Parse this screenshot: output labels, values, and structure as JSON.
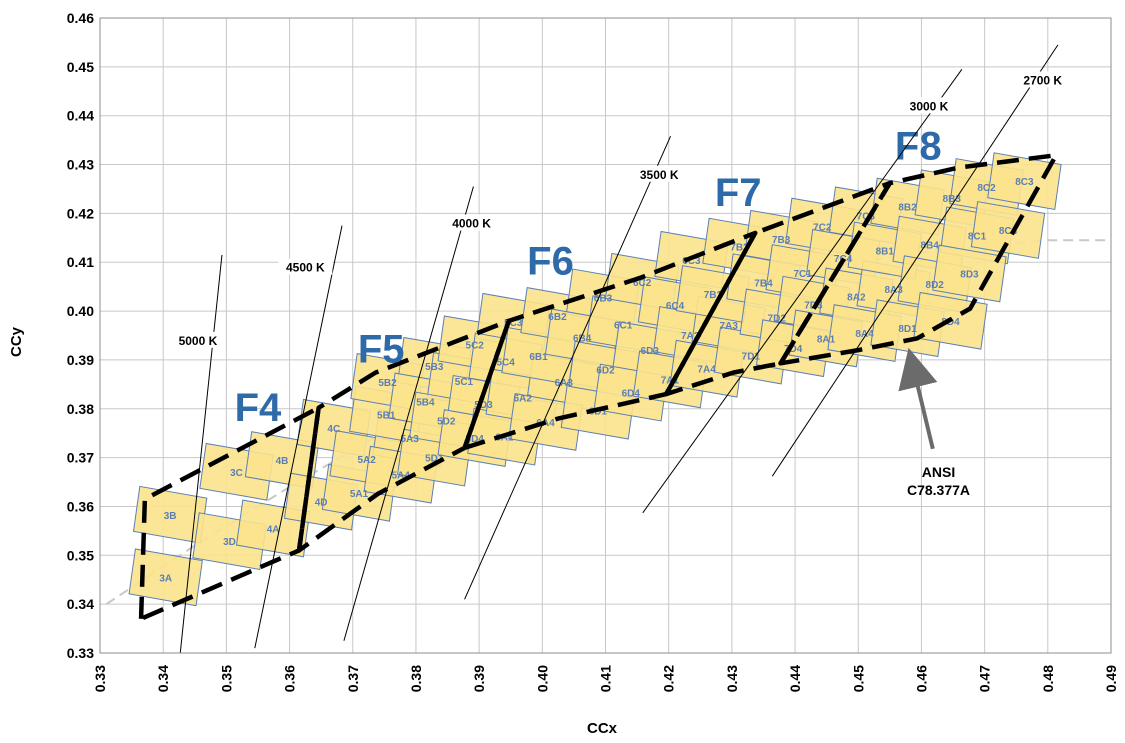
{
  "chart_data": {
    "type": "scatter",
    "title": "",
    "xlabel": "CCx",
    "ylabel": "CCy",
    "xlim": [
      0.33,
      0.49
    ],
    "ylim": [
      0.33,
      0.46
    ],
    "grid": true,
    "x_ticks": [
      "0.33",
      "0.34",
      "0.35",
      "0.36",
      "0.37",
      "0.38",
      "0.39",
      "0.40",
      "0.41",
      "0.42",
      "0.43",
      "0.44",
      "0.45",
      "0.46",
      "0.47",
      "0.48",
      "0.49"
    ],
    "y_ticks": [
      "0.33",
      "0.34",
      "0.35",
      "0.36",
      "0.37",
      "0.38",
      "0.39",
      "0.40",
      "0.41",
      "0.42",
      "0.43",
      "0.44",
      "0.45",
      "0.46"
    ],
    "colors": {
      "bin_fill": "#fbe38c",
      "bin_fill_alt": "#c9dc8a",
      "bin_edge": "#5b7fb5",
      "family_label": "#2e6aa8",
      "dashed_outline": "#000000",
      "planckian": "#c8c8c8",
      "arrow": "#6b6b6b"
    },
    "planckian_locus": {
      "x": [
        0.331,
        0.345,
        0.36,
        0.38,
        0.4,
        0.42,
        0.44,
        0.46,
        0.48,
        0.49
      ],
      "y": [
        0.34,
        0.352,
        0.364,
        0.379,
        0.392,
        0.401,
        0.408,
        0.412,
        0.4145,
        0.4145
      ]
    },
    "cct_lines": [
      {
        "label": "5000 K",
        "x1": 0.3427,
        "y1": 0.33,
        "x2": 0.3493,
        "y2": 0.4115,
        "label_x": 0.3455,
        "label_y": 0.3935
      },
      {
        "label": "4500 K",
        "x1": 0.3545,
        "y1": 0.331,
        "x2": 0.3683,
        "y2": 0.4175,
        "label_x": 0.3625,
        "label_y": 0.4085
      },
      {
        "label": "4000 K",
        "x1": 0.3686,
        "y1": 0.3325,
        "x2": 0.3891,
        "y2": 0.4255,
        "label_x": 0.3888,
        "label_y": 0.4175
      },
      {
        "label": "3500 K",
        "x1": 0.3877,
        "y1": 0.341,
        "x2": 0.4203,
        "y2": 0.4358,
        "label_x": 0.4185,
        "label_y": 0.4275
      },
      {
        "label": "3000 K",
        "x1": 0.4159,
        "y1": 0.3587,
        "x2": 0.4664,
        "y2": 0.4495,
        "label_x": 0.4612,
        "label_y": 0.4415
      },
      {
        "label": "2700 K",
        "x1": 0.4364,
        "y1": 0.3662,
        "x2": 0.4816,
        "y2": 0.4545,
        "label_x": 0.4792,
        "label_y": 0.4468
      }
    ],
    "families": [
      {
        "name": "F4",
        "label_x": 0.355,
        "label_y": 0.3775,
        "polygon": [
          [
            0.3365,
            0.337
          ],
          [
            0.3371,
            0.3615
          ],
          [
            0.3646,
            0.3802
          ],
          [
            0.3615,
            0.351
          ]
        ]
      },
      {
        "name": "F5",
        "label_x": 0.3745,
        "label_y": 0.3895,
        "polygon": [
          [
            0.3615,
            0.351
          ],
          [
            0.3646,
            0.3802
          ],
          [
            0.3736,
            0.3874
          ],
          [
            0.3947,
            0.398
          ],
          [
            0.3877,
            0.372
          ],
          [
            0.374,
            0.3626
          ]
        ]
      },
      {
        "name": "F6",
        "label_x": 0.4013,
        "label_y": 0.4075,
        "polygon": [
          [
            0.3877,
            0.372
          ],
          [
            0.3947,
            0.398
          ],
          [
            0.4157,
            0.4069
          ],
          [
            0.4337,
            0.416
          ],
          [
            0.4196,
            0.383
          ],
          [
            0.4025,
            0.378
          ]
        ]
      },
      {
        "name": "F7",
        "label_x": 0.431,
        "label_y": 0.4215,
        "polygon": [
          [
            0.4196,
            0.383
          ],
          [
            0.4337,
            0.416
          ],
          [
            0.455,
            0.4262
          ],
          [
            0.4377,
            0.3893
          ],
          [
            0.4302,
            0.3874
          ]
        ]
      },
      {
        "name": "F8",
        "label_x": 0.4595,
        "label_y": 0.431,
        "polygon": [
          [
            0.4377,
            0.3893
          ],
          [
            0.455,
            0.4262
          ],
          [
            0.466,
            0.4294
          ],
          [
            0.4813,
            0.4319
          ],
          [
            0.4677,
            0.4005
          ],
          [
            0.4593,
            0.3944
          ],
          [
            0.45,
            0.392
          ]
        ]
      }
    ],
    "bins": [
      {
        "label": "3A",
        "x": 0.3404,
        "y": 0.3455
      },
      {
        "label": "3B",
        "x": 0.3411,
        "y": 0.3583
      },
      {
        "label": "3C",
        "x": 0.3516,
        "y": 0.3671
      },
      {
        "label": "3D",
        "x": 0.3505,
        "y": 0.3529
      },
      {
        "label": "4A",
        "x": 0.3574,
        "y": 0.3555
      },
      {
        "label": "4B",
        "x": 0.3588,
        "y": 0.3695
      },
      {
        "label": "4C",
        "x": 0.367,
        "y": 0.3761
      },
      {
        "label": "4D",
        "x": 0.365,
        "y": 0.361
      },
      {
        "label": "5A1",
        "x": 0.371,
        "y": 0.3628
      },
      {
        "label": "5A2",
        "x": 0.3722,
        "y": 0.3697
      },
      {
        "label": "5A3",
        "x": 0.379,
        "y": 0.374
      },
      {
        "label": "5A4",
        "x": 0.3776,
        "y": 0.3665
      },
      {
        "label": "5B1",
        "x": 0.3753,
        "y": 0.3788
      },
      {
        "label": "5B2",
        "x": 0.3755,
        "y": 0.3855
      },
      {
        "label": "5B3",
        "x": 0.3829,
        "y": 0.3888
      },
      {
        "label": "5B4",
        "x": 0.3815,
        "y": 0.3815
      },
      {
        "label": "5C1",
        "x": 0.3876,
        "y": 0.3857
      },
      {
        "label": "5C2",
        "x": 0.3893,
        "y": 0.3932
      },
      {
        "label": "5C3",
        "x": 0.3954,
        "y": 0.3978
      },
      {
        "label": "5C4",
        "x": 0.3942,
        "y": 0.3897
      },
      {
        "label": "5D1",
        "x": 0.3829,
        "y": 0.37
      },
      {
        "label": "5D2",
        "x": 0.3848,
        "y": 0.3776
      },
      {
        "label": "5D3",
        "x": 0.3907,
        "y": 0.381
      },
      {
        "label": "5D4",
        "x": 0.3893,
        "y": 0.374
      },
      {
        "label": "6A1",
        "x": 0.394,
        "y": 0.3743
      },
      {
        "label": "6A2",
        "x": 0.3969,
        "y": 0.3823
      },
      {
        "label": "6A3",
        "x": 0.4034,
        "y": 0.3855
      },
      {
        "label": "6A4",
        "x": 0.4005,
        "y": 0.3773
      },
      {
        "label": "6B1",
        "x": 0.3994,
        "y": 0.3908
      },
      {
        "label": "6B2",
        "x": 0.4024,
        "y": 0.399
      },
      {
        "label": "6B3",
        "x": 0.4096,
        "y": 0.4028
      },
      {
        "label": "6B4",
        "x": 0.4063,
        "y": 0.3946
      },
      {
        "label": "6C1",
        "x": 0.4128,
        "y": 0.3973
      },
      {
        "label": "6C2",
        "x": 0.4158,
        "y": 0.406
      },
      {
        "label": "6C3",
        "x": 0.4236,
        "y": 0.4105
      },
      {
        "label": "6C4",
        "x": 0.421,
        "y": 0.4012
      },
      {
        "label": "6D1",
        "x": 0.4088,
        "y": 0.3796
      },
      {
        "label": "6D2",
        "x": 0.41,
        "y": 0.388
      },
      {
        "label": "6D3",
        "x": 0.417,
        "y": 0.392
      },
      {
        "label": "6D4",
        "x": 0.414,
        "y": 0.3833
      },
      {
        "label": "7A1",
        "x": 0.4202,
        "y": 0.386
      },
      {
        "label": "7A2",
        "x": 0.4234,
        "y": 0.3951
      },
      {
        "label": "7A3",
        "x": 0.4295,
        "y": 0.3972
      },
      {
        "label": "7A4",
        "x": 0.426,
        "y": 0.3882
      },
      {
        "label": "7B1",
        "x": 0.427,
        "y": 0.4035
      },
      {
        "label": "7B2",
        "x": 0.4312,
        "y": 0.4132
      },
      {
        "label": "7B3",
        "x": 0.4378,
        "y": 0.4148
      },
      {
        "label": "7B4",
        "x": 0.435,
        "y": 0.4059
      },
      {
        "label": "7C1",
        "x": 0.4412,
        "y": 0.4078
      },
      {
        "label": "7C2",
        "x": 0.4443,
        "y": 0.4173
      },
      {
        "label": "7C3",
        "x": 0.4512,
        "y": 0.4196
      },
      {
        "label": "7C4",
        "x": 0.4476,
        "y": 0.4109
      },
      {
        "label": "7D1",
        "x": 0.433,
        "y": 0.3909
      },
      {
        "label": "7D2",
        "x": 0.4371,
        "y": 0.3987
      },
      {
        "label": "7D3",
        "x": 0.4429,
        "y": 0.4013
      },
      {
        "label": "7D4",
        "x": 0.4397,
        "y": 0.3924
      },
      {
        "label": "8A1",
        "x": 0.4449,
        "y": 0.3944
      },
      {
        "label": "8A2",
        "x": 0.4497,
        "y": 0.403
      },
      {
        "label": "8A3",
        "x": 0.4556,
        "y": 0.4045
      },
      {
        "label": "8A4",
        "x": 0.451,
        "y": 0.3955
      },
      {
        "label": "8B1",
        "x": 0.4542,
        "y": 0.4124
      },
      {
        "label": "8B2",
        "x": 0.4578,
        "y": 0.4214
      },
      {
        "label": "8B3",
        "x": 0.4648,
        "y": 0.4231
      },
      {
        "label": "8B4",
        "x": 0.4613,
        "y": 0.4136
      },
      {
        "label": "8C1",
        "x": 0.4688,
        "y": 0.4155
      },
      {
        "label": "8C2",
        "x": 0.4703,
        "y": 0.4254
      },
      {
        "label": "8C3",
        "x": 0.4763,
        "y": 0.4266
      },
      {
        "label": "8C4",
        "x": 0.4737,
        "y": 0.4166
      },
      {
        "label": "8D1",
        "x": 0.4578,
        "y": 0.3965
      },
      {
        "label": "8D2",
        "x": 0.4621,
        "y": 0.4055
      },
      {
        "label": "8D3",
        "x": 0.4676,
        "y": 0.4077
      },
      {
        "label": "8D4",
        "x": 0.4646,
        "y": 0.398
      }
    ],
    "annotation": {
      "line1": "ANSI",
      "line2": "C78.377A",
      "text_x": 0.4627,
      "text_y": 0.366,
      "arrow_from_x": 0.4618,
      "arrow_from_y": 0.3718,
      "arrow_to_x": 0.4587,
      "arrow_to_y": 0.3885
    }
  }
}
